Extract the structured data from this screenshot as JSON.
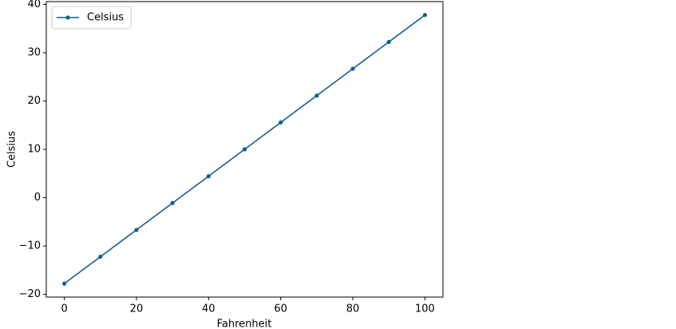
{
  "chart_data": {
    "type": "line",
    "x_label": "Fahrenheit",
    "y_label": "Celsius",
    "x": [
      0,
      10,
      20,
      30,
      40,
      50,
      60,
      70,
      80,
      90,
      100
    ],
    "series": [
      {
        "name": "Celsius",
        "color": "#0f5e92",
        "values": [
          -17.78,
          -12.22,
          -6.67,
          -1.11,
          4.44,
          10,
          15.56,
          21.11,
          26.67,
          32.22,
          37.78
        ]
      }
    ],
    "xlim": [
      -5,
      105
    ],
    "ylim": [
      -20.56,
      40.56
    ],
    "xticks": [
      0,
      20,
      40,
      60,
      80,
      100
    ],
    "yticks": [
      {
        "value": -20,
        "label": "−20"
      },
      {
        "value": -10,
        "label": "−10"
      },
      0,
      10,
      20,
      30,
      40
    ],
    "grid": false,
    "legend": "upper-left",
    "markers": true
  }
}
